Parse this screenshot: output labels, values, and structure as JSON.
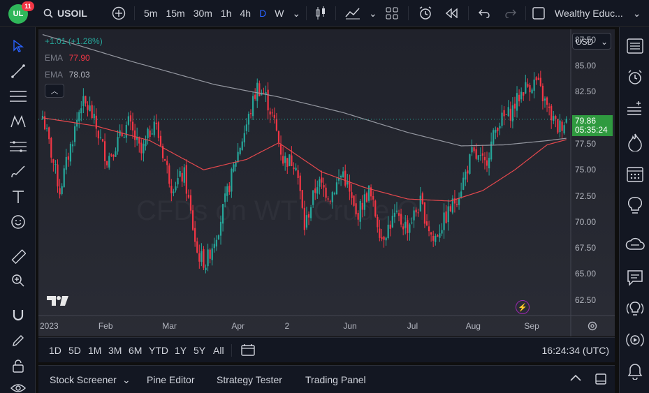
{
  "top": {
    "avatar_initials": "UL",
    "notification_count": "11",
    "symbol": "USOIL",
    "timeframes": [
      "5m",
      "15m",
      "30m",
      "1h",
      "4h",
      "D",
      "W"
    ],
    "active_timeframe": "D",
    "layout_name": "Wealthy Educ..."
  },
  "legend": {
    "change": "+1.01 (+1.28%)",
    "ema1_label": "EMA",
    "ema1_value": "77.90",
    "ema2_label": "EMA",
    "ema2_value": "78.03"
  },
  "currency": "USD",
  "last_price": "79.86",
  "countdown": "05:35:24",
  "watermark": "CFDs on WTI Crude Oil",
  "chart_data": {
    "type": "candlestick",
    "symbol": "USOIL",
    "interval": "1D",
    "y_ticks": [
      "87.50",
      "85.00",
      "82.50",
      "77.50",
      "75.00",
      "72.50",
      "70.00",
      "67.50",
      "65.00",
      "62.50"
    ],
    "ylim": [
      61.0,
      88.5
    ],
    "x_labels": [
      "2023",
      "Feb",
      "Mar",
      "Apr",
      "2",
      "Jun",
      "Jul",
      "Aug",
      "Sep"
    ],
    "last_price": 79.86,
    "anchors": [
      [
        0,
        80.2
      ],
      [
        8,
        73.0
      ],
      [
        18,
        81.5
      ],
      [
        22,
        80.8
      ],
      [
        30,
        76.0
      ],
      [
        40,
        79.5
      ],
      [
        46,
        76.5
      ],
      [
        52,
        79.8
      ],
      [
        60,
        73.5
      ],
      [
        66,
        74.5
      ],
      [
        72,
        67.0
      ],
      [
        76,
        66.0
      ],
      [
        82,
        69.5
      ],
      [
        90,
        76.0
      ],
      [
        96,
        80.0
      ],
      [
        100,
        83.0
      ],
      [
        104,
        82.0
      ],
      [
        108,
        79.5
      ],
      [
        112,
        76.0
      ],
      [
        118,
        75.8
      ],
      [
        122,
        69.5
      ],
      [
        128,
        73.8
      ],
      [
        134,
        72.5
      ],
      [
        140,
        74.8
      ],
      [
        146,
        70.5
      ],
      [
        152,
        73.0
      ],
      [
        158,
        68.5
      ],
      [
        164,
        70.5
      ],
      [
        170,
        69.5
      ],
      [
        176,
        71.8
      ],
      [
        182,
        68.2
      ],
      [
        188,
        70.5
      ],
      [
        194,
        72.8
      ],
      [
        200,
        76.5
      ],
      [
        206,
        75.5
      ],
      [
        212,
        79.5
      ],
      [
        218,
        80.5
      ],
      [
        224,
        82.8
      ],
      [
        230,
        83.5
      ],
      [
        236,
        80.5
      ],
      [
        240,
        79.0
      ],
      [
        244,
        79.86
      ]
    ],
    "ema_red_anchors": [
      [
        0,
        80.0
      ],
      [
        25,
        79.2
      ],
      [
        50,
        77.8
      ],
      [
        75,
        75.0
      ],
      [
        95,
        76.0
      ],
      [
        110,
        77.6
      ],
      [
        130,
        74.8
      ],
      [
        150,
        73.3
      ],
      [
        170,
        72.2
      ],
      [
        190,
        72.0
      ],
      [
        205,
        73.0
      ],
      [
        220,
        75.0
      ],
      [
        235,
        77.4
      ],
      [
        244,
        77.9
      ]
    ],
    "ema_gray_anchors": [
      [
        0,
        88.0
      ],
      [
        40,
        85.5
      ],
      [
        80,
        83.2
      ],
      [
        110,
        82.0
      ],
      [
        140,
        80.5
      ],
      [
        170,
        78.6
      ],
      [
        195,
        77.3
      ],
      [
        215,
        77.4
      ],
      [
        235,
        77.8
      ],
      [
        244,
        78.03
      ]
    ]
  },
  "range_buttons": [
    "1D",
    "5D",
    "1M",
    "3M",
    "6M",
    "YTD",
    "1Y",
    "5Y",
    "All"
  ],
  "clock": "16:24:34 (UTC)",
  "bottom_tabs": [
    "Stock Screener",
    "Pine Editor",
    "Strategy Tester",
    "Trading Panel"
  ],
  "colors": {
    "up": "#26a69a",
    "down": "#f23645",
    "ema_red": "#e5484d",
    "ema_gray": "#9598a1",
    "accent": "#2962ff"
  }
}
